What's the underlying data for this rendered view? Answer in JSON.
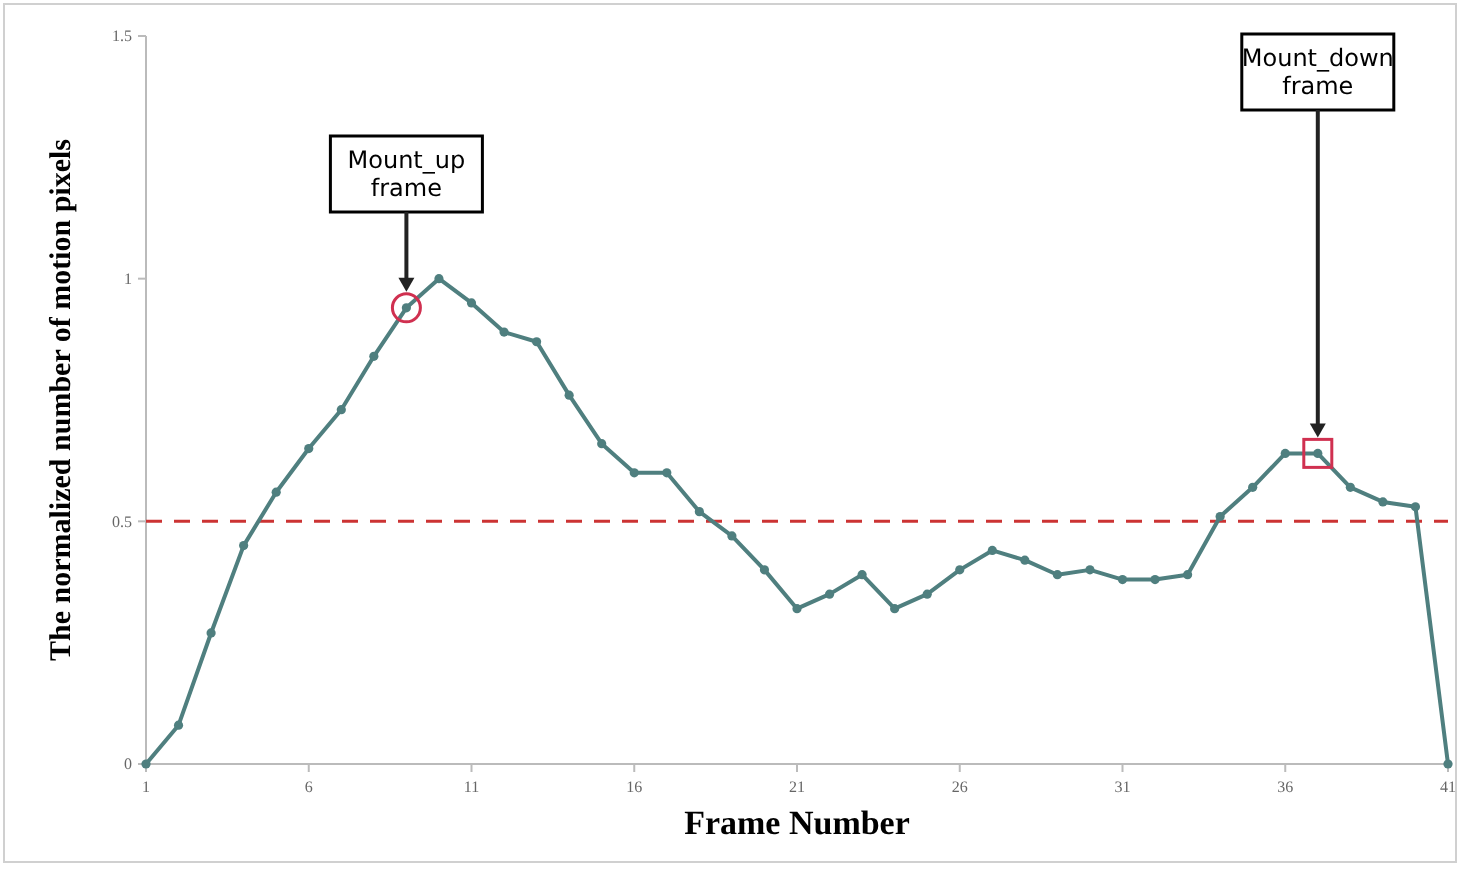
{
  "chart_data": {
    "type": "line",
    "xlabel": "Frame Number",
    "ylabel": "The normalized number of motion pixels",
    "x": [
      1,
      2,
      3,
      4,
      5,
      6,
      7,
      8,
      9,
      10,
      11,
      12,
      13,
      14,
      15,
      16,
      17,
      18,
      19,
      20,
      21,
      22,
      23,
      24,
      25,
      26,
      27,
      28,
      29,
      30,
      31,
      32,
      33,
      34,
      35,
      36,
      37,
      38,
      39,
      40,
      41
    ],
    "series": [
      {
        "color": "#4f7f7f",
        "values": [
          0,
          0.08,
          0.27,
          0.45,
          0.56,
          0.65,
          0.73,
          0.84,
          0.94,
          1.0,
          0.95,
          0.89,
          0.87,
          0.76,
          0.66,
          0.6,
          0.6,
          0.52,
          0.47,
          0.4,
          0.32,
          0.35,
          0.39,
          0.32,
          0.35,
          0.4,
          0.44,
          0.42,
          0.39,
          0.4,
          0.38,
          0.38,
          0.39,
          0.51,
          0.57,
          0.64,
          0.64,
          0.57,
          0.54,
          0.53,
          0
        ]
      }
    ],
    "xlim": [
      1,
      41
    ],
    "xticks": [
      1,
      6,
      11,
      16,
      21,
      26,
      31,
      36,
      41
    ],
    "ylim": [
      0,
      1.5
    ],
    "yticks": [
      0,
      0.5,
      1,
      1.5
    ],
    "ref_lines": [
      {
        "axis": "y",
        "value": 0.5,
        "color": "#cc3333",
        "line_style": "dashed"
      }
    ],
    "annotations": [
      "Mount_up frame",
      "Mount_down frame"
    ],
    "grid": false,
    "marker": "circle",
    "line_style": "solid"
  }
}
